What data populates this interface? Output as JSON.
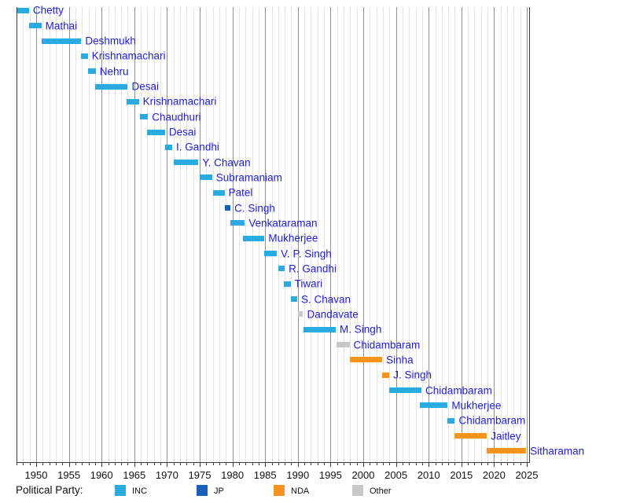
{
  "chart_data": {
    "type": "bar",
    "variant": "horizontal-timeline-gantt",
    "title": "",
    "description_of_content": "Timeline of officeholders colored by political party",
    "x_axis": {
      "min": 1947,
      "max": 2025.3,
      "major_ticks": [
        1950,
        1955,
        1960,
        1965,
        1970,
        1975,
        1980,
        1985,
        1990,
        1995,
        2000,
        2005,
        2010,
        2015,
        2020,
        2025
      ],
      "minor_tick_interval": 1,
      "grid": true
    },
    "bars": [
      {
        "label": "Chetty",
        "party": "INC",
        "start": 1947.1,
        "end": 1948.9
      },
      {
        "label": "Mathai",
        "party": "INC",
        "start": 1948.9,
        "end": 1950.8
      },
      {
        "label": "Deshmukh",
        "party": "INC",
        "start": 1950.9,
        "end": 1956.9
      },
      {
        "label": "Krishnamachari",
        "party": "INC",
        "start": 1956.8,
        "end": 1957.9
      },
      {
        "label": "Nehru",
        "party": "INC",
        "start": 1957.9,
        "end": 1959.1
      },
      {
        "label": "Desai",
        "party": "INC",
        "start": 1959.0,
        "end": 1964.0
      },
      {
        "label": "Krishnamachari",
        "party": "INC",
        "start": 1963.8,
        "end": 1965.7
      },
      {
        "label": "Chaudhuri",
        "party": "INC",
        "start": 1965.9,
        "end": 1967.1
      },
      {
        "label": "Desai",
        "party": "INC",
        "start": 1966.9,
        "end": 1969.7
      },
      {
        "label": "I. Gandhi",
        "party": "INC",
        "start": 1969.7,
        "end": 1970.8
      },
      {
        "label": "Y. Chavan",
        "party": "INC",
        "start": 1971.0,
        "end": 1974.8
      },
      {
        "label": "Subramaniam",
        "party": "INC",
        "start": 1975.0,
        "end": 1976.9
      },
      {
        "label": "Patel",
        "party": "INC",
        "start": 1977.1,
        "end": 1978.8
      },
      {
        "label": "C. Singh",
        "party": "JP",
        "start": 1978.9,
        "end": 1979.7
      },
      {
        "label": "Venkataraman",
        "party": "INC",
        "start": 1979.7,
        "end": 1981.9
      },
      {
        "label": "Mukherjee",
        "party": "INC",
        "start": 1981.6,
        "end": 1984.9
      },
      {
        "label": "V. P. Singh",
        "party": "INC",
        "start": 1984.8,
        "end": 1986.8
      },
      {
        "label": "R. Gandhi",
        "party": "INC",
        "start": 1987.0,
        "end": 1988.0
      },
      {
        "label": "Tiwari",
        "party": "INC",
        "start": 1987.9,
        "end": 1988.9
      },
      {
        "label": "S. Chavan",
        "party": "INC",
        "start": 1989.0,
        "end": 1989.9
      },
      {
        "label": "Dandavate",
        "party": "Other",
        "start": 1990.0,
        "end": 1990.8
      },
      {
        "label": "M. Singh",
        "party": "INC",
        "start": 1990.9,
        "end": 1995.8
      },
      {
        "label": "Chidambaram",
        "party": "Other",
        "start": 1995.9,
        "end": 1997.9
      },
      {
        "label": "Sinha",
        "party": "NDA",
        "start": 1998.0,
        "end": 2002.9
      },
      {
        "label": "J. Singh",
        "party": "NDA",
        "start": 2002.9,
        "end": 2004.0
      },
      {
        "label": "Chidambaram",
        "party": "INC",
        "start": 2004.0,
        "end": 2008.9
      },
      {
        "label": "Mukherjee",
        "party": "INC",
        "start": 2008.7,
        "end": 2012.9
      },
      {
        "label": "Chidambaram",
        "party": "INC",
        "start": 2012.9,
        "end": 2014.0
      },
      {
        "label": "Jaitley",
        "party": "NDA",
        "start": 2014.0,
        "end": 2018.9
      },
      {
        "label": "Sitharaman",
        "party": "NDA",
        "start": 2018.9,
        "end": 2024.9
      }
    ],
    "party_colors": {
      "INC": "#29ABE2",
      "JP": "#1560BD",
      "NDA": "#F7941D",
      "Other": "#C8C8C8"
    },
    "bar_label_color": "#2222CC",
    "legend": {
      "title": "Political Party:",
      "position": "bottom",
      "entries": [
        {
          "party": "INC",
          "label": "INC"
        },
        {
          "party": "JP",
          "label": "JP"
        },
        {
          "party": "NDA",
          "label": "NDA"
        },
        {
          "party": "Other",
          "label": "Other"
        }
      ]
    }
  }
}
